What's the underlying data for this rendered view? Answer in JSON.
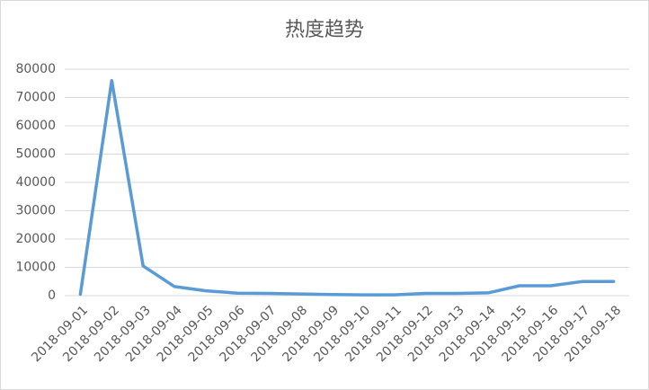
{
  "chart_data": {
    "type": "line",
    "title": "热度趋势",
    "categories": [
      "2018-09-01",
      "2018-09-02",
      "2018-09-03",
      "2018-09-04",
      "2018-09-05",
      "2018-09-06",
      "2018-09-07",
      "2018-09-08",
      "2018-09-09",
      "2018-09-10",
      "2018-09-11",
      "2018-09-12",
      "2018-09-13",
      "2018-09-14",
      "2018-09-15",
      "2018-09-16",
      "2018-09-17",
      "2018-09-18"
    ],
    "values": [
      500,
      76000,
      10500,
      3200,
      1700,
      900,
      800,
      600,
      400,
      300,
      300,
      800,
      800,
      1000,
      3500,
      3500,
      5000,
      5000
    ],
    "color": "#5b9bd5",
    "ylim": [
      0,
      80000
    ],
    "yticks": [
      0,
      10000,
      20000,
      30000,
      40000,
      50000,
      60000,
      70000,
      80000
    ],
    "grid": true
  }
}
